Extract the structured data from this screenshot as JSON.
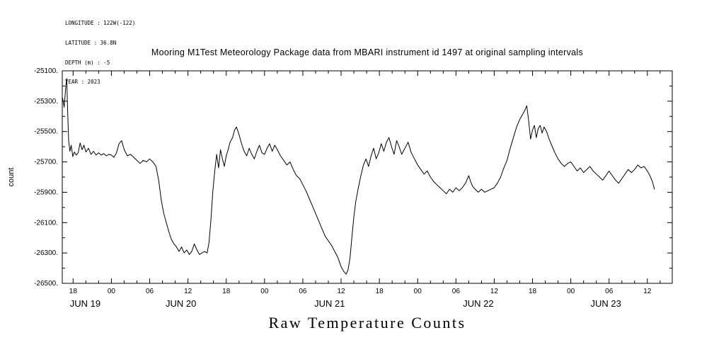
{
  "meta": {
    "lines": [
      "LONGITUDE : 122W(-122)",
      "LATITUDE : 36.8N",
      "DEPTH (m) : -5",
      "YEAR : 2023"
    ]
  },
  "title": "Mooring M1Test Meteorology Package data from MBARI instrument id 1497 at original sampling intervals",
  "footer_title": "Raw Temperature Counts",
  "colors": {
    "line": "#000000",
    "axis": "#000000",
    "background": "#ffffff"
  },
  "chart_data": {
    "type": "line",
    "title": "Mooring M1Test Meteorology Package data from MBARI instrument id 1497 at original sampling intervals",
    "footer_title": "Raw Temperature Counts",
    "grid": false,
    "legend": "none",
    "x_unit": "hours, 0 = JUN 19 2023 00:00",
    "x_axis": {
      "domain_hours": [
        16.3,
        111.9
      ],
      "major_tick_hours": [
        18,
        24,
        30,
        36,
        42,
        48,
        54,
        60,
        66,
        72,
        78,
        84,
        90,
        96,
        102,
        108
      ],
      "major_tick_labels": [
        "18",
        "00",
        "06",
        "12",
        "18",
        "00",
        "06",
        "12",
        "18",
        "00",
        "06",
        "12",
        "18",
        "00",
        "06",
        "12"
      ],
      "minor_tick_step_hours": 2,
      "date_labels": [
        {
          "label": "JUN 19",
          "hour": 19.9
        },
        {
          "label": "JUN 20",
          "hour": 34.9
        },
        {
          "label": "JUN 21",
          "hour": 58.2
        },
        {
          "label": "JUN 22",
          "hour": 81.5
        },
        {
          "label": "JUN 23",
          "hour": 101.5
        }
      ]
    },
    "y_axis": {
      "label": "count",
      "domain": [
        -26500,
        -25100
      ],
      "major_ticks": [
        -26500,
        -26300,
        -26100,
        -25900,
        -25700,
        -25500,
        -25300,
        -25100
      ],
      "major_tick_labels": [
        "-26500.",
        "-26300.",
        "-26100.",
        "-25900.",
        "-25700.",
        "-25500.",
        "-25300.",
        "-25100."
      ],
      "minor_tick_step": 100
    },
    "series": [
      {
        "name": "raw_temperature_counts",
        "points": [
          [
            16.35,
            -25280
          ],
          [
            16.6,
            -25340
          ],
          [
            16.85,
            -25200
          ],
          [
            17.0,
            -25150
          ],
          [
            17.15,
            -25380
          ],
          [
            17.3,
            -25560
          ],
          [
            17.5,
            -25630
          ],
          [
            17.7,
            -25590
          ],
          [
            17.95,
            -25665
          ],
          [
            18.2,
            -25635
          ],
          [
            18.5,
            -25655
          ],
          [
            18.8,
            -25640
          ],
          [
            19.1,
            -25575
          ],
          [
            19.4,
            -25620
          ],
          [
            19.7,
            -25590
          ],
          [
            20.0,
            -25635
          ],
          [
            20.4,
            -25610
          ],
          [
            20.8,
            -25650
          ],
          [
            21.2,
            -25630
          ],
          [
            21.6,
            -25655
          ],
          [
            22.0,
            -25640
          ],
          [
            22.4,
            -25655
          ],
          [
            22.8,
            -25645
          ],
          [
            23.2,
            -25660
          ],
          [
            23.6,
            -25650
          ],
          [
            24.0,
            -25655
          ],
          [
            24.4,
            -25670
          ],
          [
            24.8,
            -25640
          ],
          [
            25.2,
            -25580
          ],
          [
            25.6,
            -25560
          ],
          [
            26.0,
            -25620
          ],
          [
            26.5,
            -25660
          ],
          [
            27.0,
            -25650
          ],
          [
            27.5,
            -25670
          ],
          [
            28.0,
            -25690
          ],
          [
            28.5,
            -25710
          ],
          [
            29.0,
            -25690
          ],
          [
            29.5,
            -25700
          ],
          [
            30.0,
            -25680
          ],
          [
            30.5,
            -25700
          ],
          [
            31.0,
            -25730
          ],
          [
            31.4,
            -25820
          ],
          [
            31.8,
            -25950
          ],
          [
            32.2,
            -26040
          ],
          [
            32.6,
            -26100
          ],
          [
            33.0,
            -26160
          ],
          [
            33.4,
            -26210
          ],
          [
            33.8,
            -26240
          ],
          [
            34.2,
            -26260
          ],
          [
            34.6,
            -26290
          ],
          [
            35.0,
            -26260
          ],
          [
            35.4,
            -26300
          ],
          [
            35.8,
            -26280
          ],
          [
            36.2,
            -26310
          ],
          [
            36.6,
            -26290
          ],
          [
            37.0,
            -26240
          ],
          [
            37.4,
            -26280
          ],
          [
            37.8,
            -26310
          ],
          [
            38.2,
            -26300
          ],
          [
            38.6,
            -26290
          ],
          [
            39.0,
            -26300
          ],
          [
            39.3,
            -26230
          ],
          [
            39.6,
            -26080
          ],
          [
            39.9,
            -25890
          ],
          [
            40.2,
            -25760
          ],
          [
            40.5,
            -25650
          ],
          [
            40.8,
            -25740
          ],
          [
            41.1,
            -25620
          ],
          [
            41.4,
            -25680
          ],
          [
            41.7,
            -25730
          ],
          [
            42.0,
            -25660
          ],
          [
            42.3,
            -25620
          ],
          [
            42.6,
            -25570
          ],
          [
            43.0,
            -25540
          ],
          [
            43.3,
            -25490
          ],
          [
            43.6,
            -25470
          ],
          [
            44.0,
            -25520
          ],
          [
            44.4,
            -25580
          ],
          [
            44.8,
            -25630
          ],
          [
            45.2,
            -25660
          ],
          [
            45.6,
            -25610
          ],
          [
            46.0,
            -25650
          ],
          [
            46.4,
            -25680
          ],
          [
            46.8,
            -25630
          ],
          [
            47.2,
            -25590
          ],
          [
            47.6,
            -25640
          ],
          [
            48.0,
            -25650
          ],
          [
            48.4,
            -25610
          ],
          [
            48.8,
            -25580
          ],
          [
            49.2,
            -25630
          ],
          [
            49.6,
            -25590
          ],
          [
            50.0,
            -25620
          ],
          [
            50.5,
            -25660
          ],
          [
            51.0,
            -25690
          ],
          [
            51.5,
            -25720
          ],
          [
            52.0,
            -25700
          ],
          [
            52.5,
            -25750
          ],
          [
            53.0,
            -25790
          ],
          [
            53.5,
            -25810
          ],
          [
            54.0,
            -25850
          ],
          [
            54.5,
            -25890
          ],
          [
            55.0,
            -25940
          ],
          [
            55.5,
            -25990
          ],
          [
            56.0,
            -26040
          ],
          [
            56.5,
            -26090
          ],
          [
            57.0,
            -26140
          ],
          [
            57.5,
            -26190
          ],
          [
            58.0,
            -26220
          ],
          [
            58.5,
            -26250
          ],
          [
            59.0,
            -26290
          ],
          [
            59.5,
            -26330
          ],
          [
            60.0,
            -26390
          ],
          [
            60.4,
            -26420
          ],
          [
            60.8,
            -26440
          ],
          [
            61.1,
            -26410
          ],
          [
            61.4,
            -26330
          ],
          [
            61.7,
            -26190
          ],
          [
            62.0,
            -26060
          ],
          [
            62.3,
            -25960
          ],
          [
            62.7,
            -25870
          ],
          [
            63.1,
            -25790
          ],
          [
            63.5,
            -25720
          ],
          [
            63.9,
            -25680
          ],
          [
            64.3,
            -25730
          ],
          [
            64.7,
            -25660
          ],
          [
            65.1,
            -25610
          ],
          [
            65.5,
            -25680
          ],
          [
            65.9,
            -25640
          ],
          [
            66.3,
            -25580
          ],
          [
            66.7,
            -25630
          ],
          [
            67.1,
            -25570
          ],
          [
            67.5,
            -25540
          ],
          [
            67.9,
            -25600
          ],
          [
            68.3,
            -25650
          ],
          [
            68.7,
            -25560
          ],
          [
            69.1,
            -25600
          ],
          [
            69.5,
            -25650
          ],
          [
            70.0,
            -25610
          ],
          [
            70.5,
            -25570
          ],
          [
            71.0,
            -25640
          ],
          [
            71.5,
            -25680
          ],
          [
            72.0,
            -25720
          ],
          [
            72.5,
            -25750
          ],
          [
            73.0,
            -25780
          ],
          [
            73.5,
            -25760
          ],
          [
            74.0,
            -25800
          ],
          [
            74.5,
            -25830
          ],
          [
            75.0,
            -25850
          ],
          [
            75.5,
            -25870
          ],
          [
            76.0,
            -25890
          ],
          [
            76.5,
            -25910
          ],
          [
            77.0,
            -25880
          ],
          [
            77.5,
            -25900
          ],
          [
            78.0,
            -25870
          ],
          [
            78.5,
            -25890
          ],
          [
            79.0,
            -25870
          ],
          [
            79.5,
            -25840
          ],
          [
            80.0,
            -25790
          ],
          [
            80.3,
            -25830
          ],
          [
            80.6,
            -25860
          ],
          [
            81.0,
            -25880
          ],
          [
            81.5,
            -25900
          ],
          [
            82.0,
            -25880
          ],
          [
            82.5,
            -25900
          ],
          [
            83.0,
            -25890
          ],
          [
            83.5,
            -25880
          ],
          [
            84.0,
            -25870
          ],
          [
            84.5,
            -25840
          ],
          [
            85.0,
            -25800
          ],
          [
            85.5,
            -25740
          ],
          [
            86.0,
            -25690
          ],
          [
            86.5,
            -25610
          ],
          [
            87.0,
            -25540
          ],
          [
            87.5,
            -25470
          ],
          [
            88.0,
            -25420
          ],
          [
            88.4,
            -25390
          ],
          [
            88.8,
            -25360
          ],
          [
            89.1,
            -25330
          ],
          [
            89.4,
            -25430
          ],
          [
            89.7,
            -25550
          ],
          [
            90.0,
            -25490
          ],
          [
            90.3,
            -25460
          ],
          [
            90.6,
            -25540
          ],
          [
            90.9,
            -25480
          ],
          [
            91.2,
            -25460
          ],
          [
            91.5,
            -25510
          ],
          [
            91.8,
            -25470
          ],
          [
            92.2,
            -25500
          ],
          [
            92.6,
            -25550
          ],
          [
            93.0,
            -25590
          ],
          [
            93.5,
            -25640
          ],
          [
            94.0,
            -25680
          ],
          [
            94.5,
            -25710
          ],
          [
            95.0,
            -25730
          ],
          [
            95.5,
            -25710
          ],
          [
            96.0,
            -25700
          ],
          [
            96.5,
            -25730
          ],
          [
            97.0,
            -25760
          ],
          [
            97.5,
            -25740
          ],
          [
            98.0,
            -25770
          ],
          [
            98.5,
            -25750
          ],
          [
            99.0,
            -25730
          ],
          [
            99.5,
            -25760
          ],
          [
            100.0,
            -25780
          ],
          [
            100.5,
            -25800
          ],
          [
            101.0,
            -25820
          ],
          [
            101.5,
            -25790
          ],
          [
            102.0,
            -25760
          ],
          [
            102.5,
            -25790
          ],
          [
            103.0,
            -25820
          ],
          [
            103.5,
            -25840
          ],
          [
            104.0,
            -25810
          ],
          [
            104.5,
            -25780
          ],
          [
            105.0,
            -25750
          ],
          [
            105.5,
            -25770
          ],
          [
            106.0,
            -25750
          ],
          [
            106.5,
            -25720
          ],
          [
            107.0,
            -25740
          ],
          [
            107.5,
            -25730
          ],
          [
            108.0,
            -25760
          ],
          [
            108.4,
            -25790
          ],
          [
            108.8,
            -25830
          ],
          [
            109.1,
            -25880
          ]
        ]
      }
    ]
  }
}
